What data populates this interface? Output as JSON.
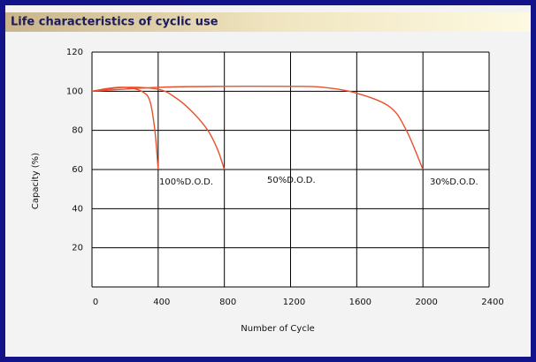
{
  "chart_data": {
    "type": "line",
    "title": "Life characteristics of cyclic use",
    "x_label": "Number of Cycle",
    "y_label": "Capacity (%)",
    "xlim": [
      0,
      2400
    ],
    "xticks": [
      0,
      400,
      800,
      1200,
      1600,
      2000,
      2400
    ],
    "ylim": [
      0,
      120
    ],
    "yticks": [
      20,
      40,
      60,
      80,
      100,
      120
    ],
    "grid": true,
    "series": [
      {
        "name": "100%D.O.D.",
        "color": "#e8502a",
        "x": [
          0,
          100,
          200,
          300,
          350,
          380,
          400
        ],
        "values": [
          100,
          101.5,
          102,
          100,
          95,
          80,
          60
        ]
      },
      {
        "name": "50%D.O.D.",
        "color": "#e8502a",
        "x": [
          0,
          200,
          400,
          500,
          600,
          700,
          760,
          800
        ],
        "values": [
          100,
          102,
          101,
          97,
          90,
          80,
          70,
          60
        ]
      },
      {
        "name": "30%D.O.D.",
        "color": "#e8502a",
        "x": [
          0,
          400,
          800,
          1200,
          1400,
          1600,
          1800,
          1900,
          2000
        ],
        "values": [
          100,
          102,
          102.5,
          102.5,
          102,
          99,
          92,
          80,
          60
        ]
      }
    ]
  }
}
